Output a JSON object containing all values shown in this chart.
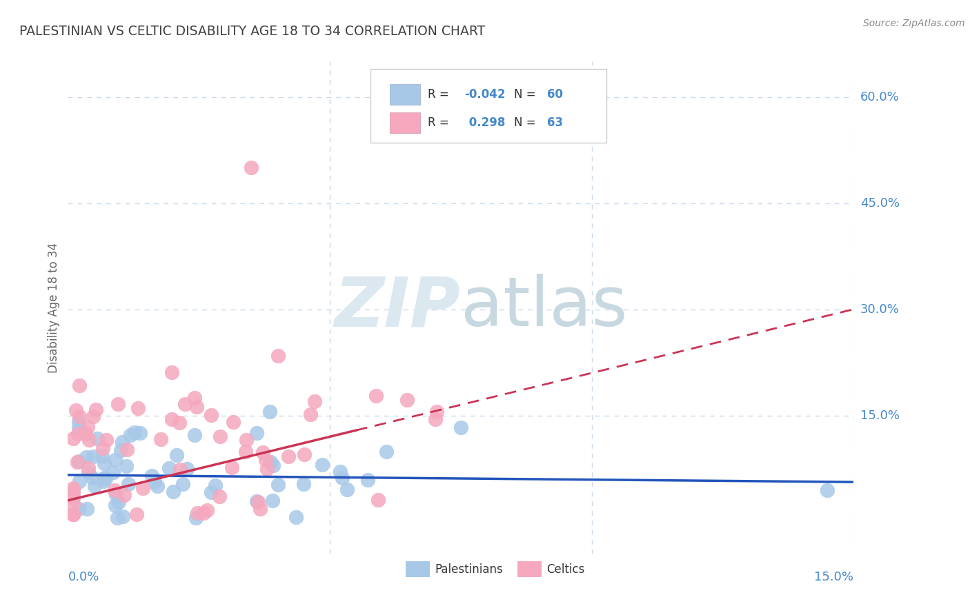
{
  "title": "PALESTINIAN VS CELTIC DISABILITY AGE 18 TO 34 CORRELATION CHART",
  "source": "Source: ZipAtlas.com",
  "ylabel": "Disability Age 18 to 34",
  "x_range": [
    0.0,
    0.15
  ],
  "y_range": [
    -0.045,
    0.65
  ],
  "r_blue": -0.042,
  "n_blue": 60,
  "r_pink": 0.298,
  "n_pink": 63,
  "blue_color": "#a8c8e8",
  "pink_color": "#f5a8be",
  "blue_line_color": "#2255bb",
  "pink_line_color": "#cc3355",
  "grid_color": "#c8d8e8",
  "title_color": "#404040",
  "axis_label_color": "#4488cc",
  "legend_text_color": "#333333",
  "source_color": "#888888",
  "watermark_color": "#dce8f0",
  "watermark_color2": "#c8d8e0"
}
